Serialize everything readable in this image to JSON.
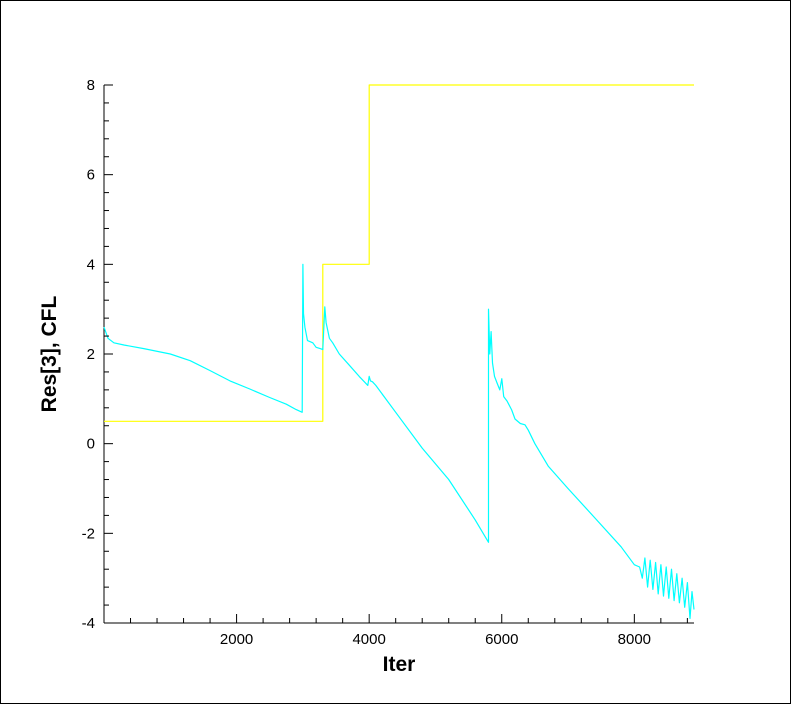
{
  "chart_data": {
    "type": "line",
    "xlabel": "Iter",
    "ylabel": "Res[3], CFL",
    "xlim": [
      0,
      8900
    ],
    "ylim": [
      -4,
      8
    ],
    "x_ticks": [
      2000,
      4000,
      6000,
      8000
    ],
    "y_ticks": [
      -4,
      -2,
      0,
      2,
      4,
      6,
      8
    ],
    "x_tick_labels": [
      "2000",
      "4000",
      "6000",
      "8000"
    ],
    "y_tick_labels": [
      "-4",
      "-2",
      "0",
      "2",
      "4",
      "6",
      "8"
    ],
    "grid": false,
    "series": [
      {
        "color": "#ffff00",
        "x": [
          0,
          3300,
          3300,
          4000,
          4000,
          8900
        ],
        "y": [
          0.5,
          0.5,
          4,
          4,
          8,
          8
        ]
      },
      {
        "color": "#00ffff",
        "x": [
          0,
          60,
          150,
          300,
          600,
          1000,
          1300,
          1600,
          1900,
          2200,
          2500,
          2750,
          2900,
          2990,
          3000,
          3010,
          3030,
          3070,
          3150,
          3200,
          3260,
          3300,
          3330,
          3350,
          3400,
          3450,
          3550,
          3700,
          3850,
          3980,
          4000,
          4020,
          4050,
          4100,
          4400,
          4800,
          5200,
          5600,
          5800,
          5800,
          5820,
          5840,
          5860,
          5890,
          5930,
          5970,
          6000,
          6030,
          6080,
          6150,
          6200,
          6280,
          6350,
          6400,
          6500,
          6700,
          7000,
          7400,
          7800,
          8000,
          8080,
          8120,
          8160,
          8200,
          8240,
          8280,
          8320,
          8360,
          8400,
          8440,
          8480,
          8520,
          8560,
          8600,
          8640,
          8680,
          8720,
          8760,
          8800,
          8840,
          8870,
          8900
        ],
        "y": [
          2.6,
          2.35,
          2.25,
          2.2,
          2.12,
          2.0,
          1.85,
          1.63,
          1.4,
          1.22,
          1.03,
          0.88,
          0.76,
          0.7,
          4.0,
          2.9,
          2.6,
          2.3,
          2.25,
          2.15,
          2.12,
          2.1,
          3.05,
          2.7,
          2.35,
          2.25,
          2.0,
          1.75,
          1.5,
          1.3,
          1.5,
          1.4,
          1.38,
          1.3,
          0.7,
          -0.1,
          -0.8,
          -1.7,
          -2.2,
          3.0,
          2.0,
          2.5,
          1.8,
          1.5,
          1.35,
          1.2,
          1.45,
          1.05,
          0.95,
          0.75,
          0.55,
          0.45,
          0.42,
          0.3,
          0.0,
          -0.5,
          -1.0,
          -1.65,
          -2.3,
          -2.7,
          -2.75,
          -3.0,
          -2.55,
          -3.2,
          -2.6,
          -3.25,
          -2.65,
          -3.35,
          -2.7,
          -3.4,
          -2.75,
          -3.45,
          -2.8,
          -3.5,
          -2.9,
          -3.55,
          -3.0,
          -3.65,
          -3.1,
          -3.9,
          -3.3,
          -3.7
        ]
      }
    ]
  }
}
